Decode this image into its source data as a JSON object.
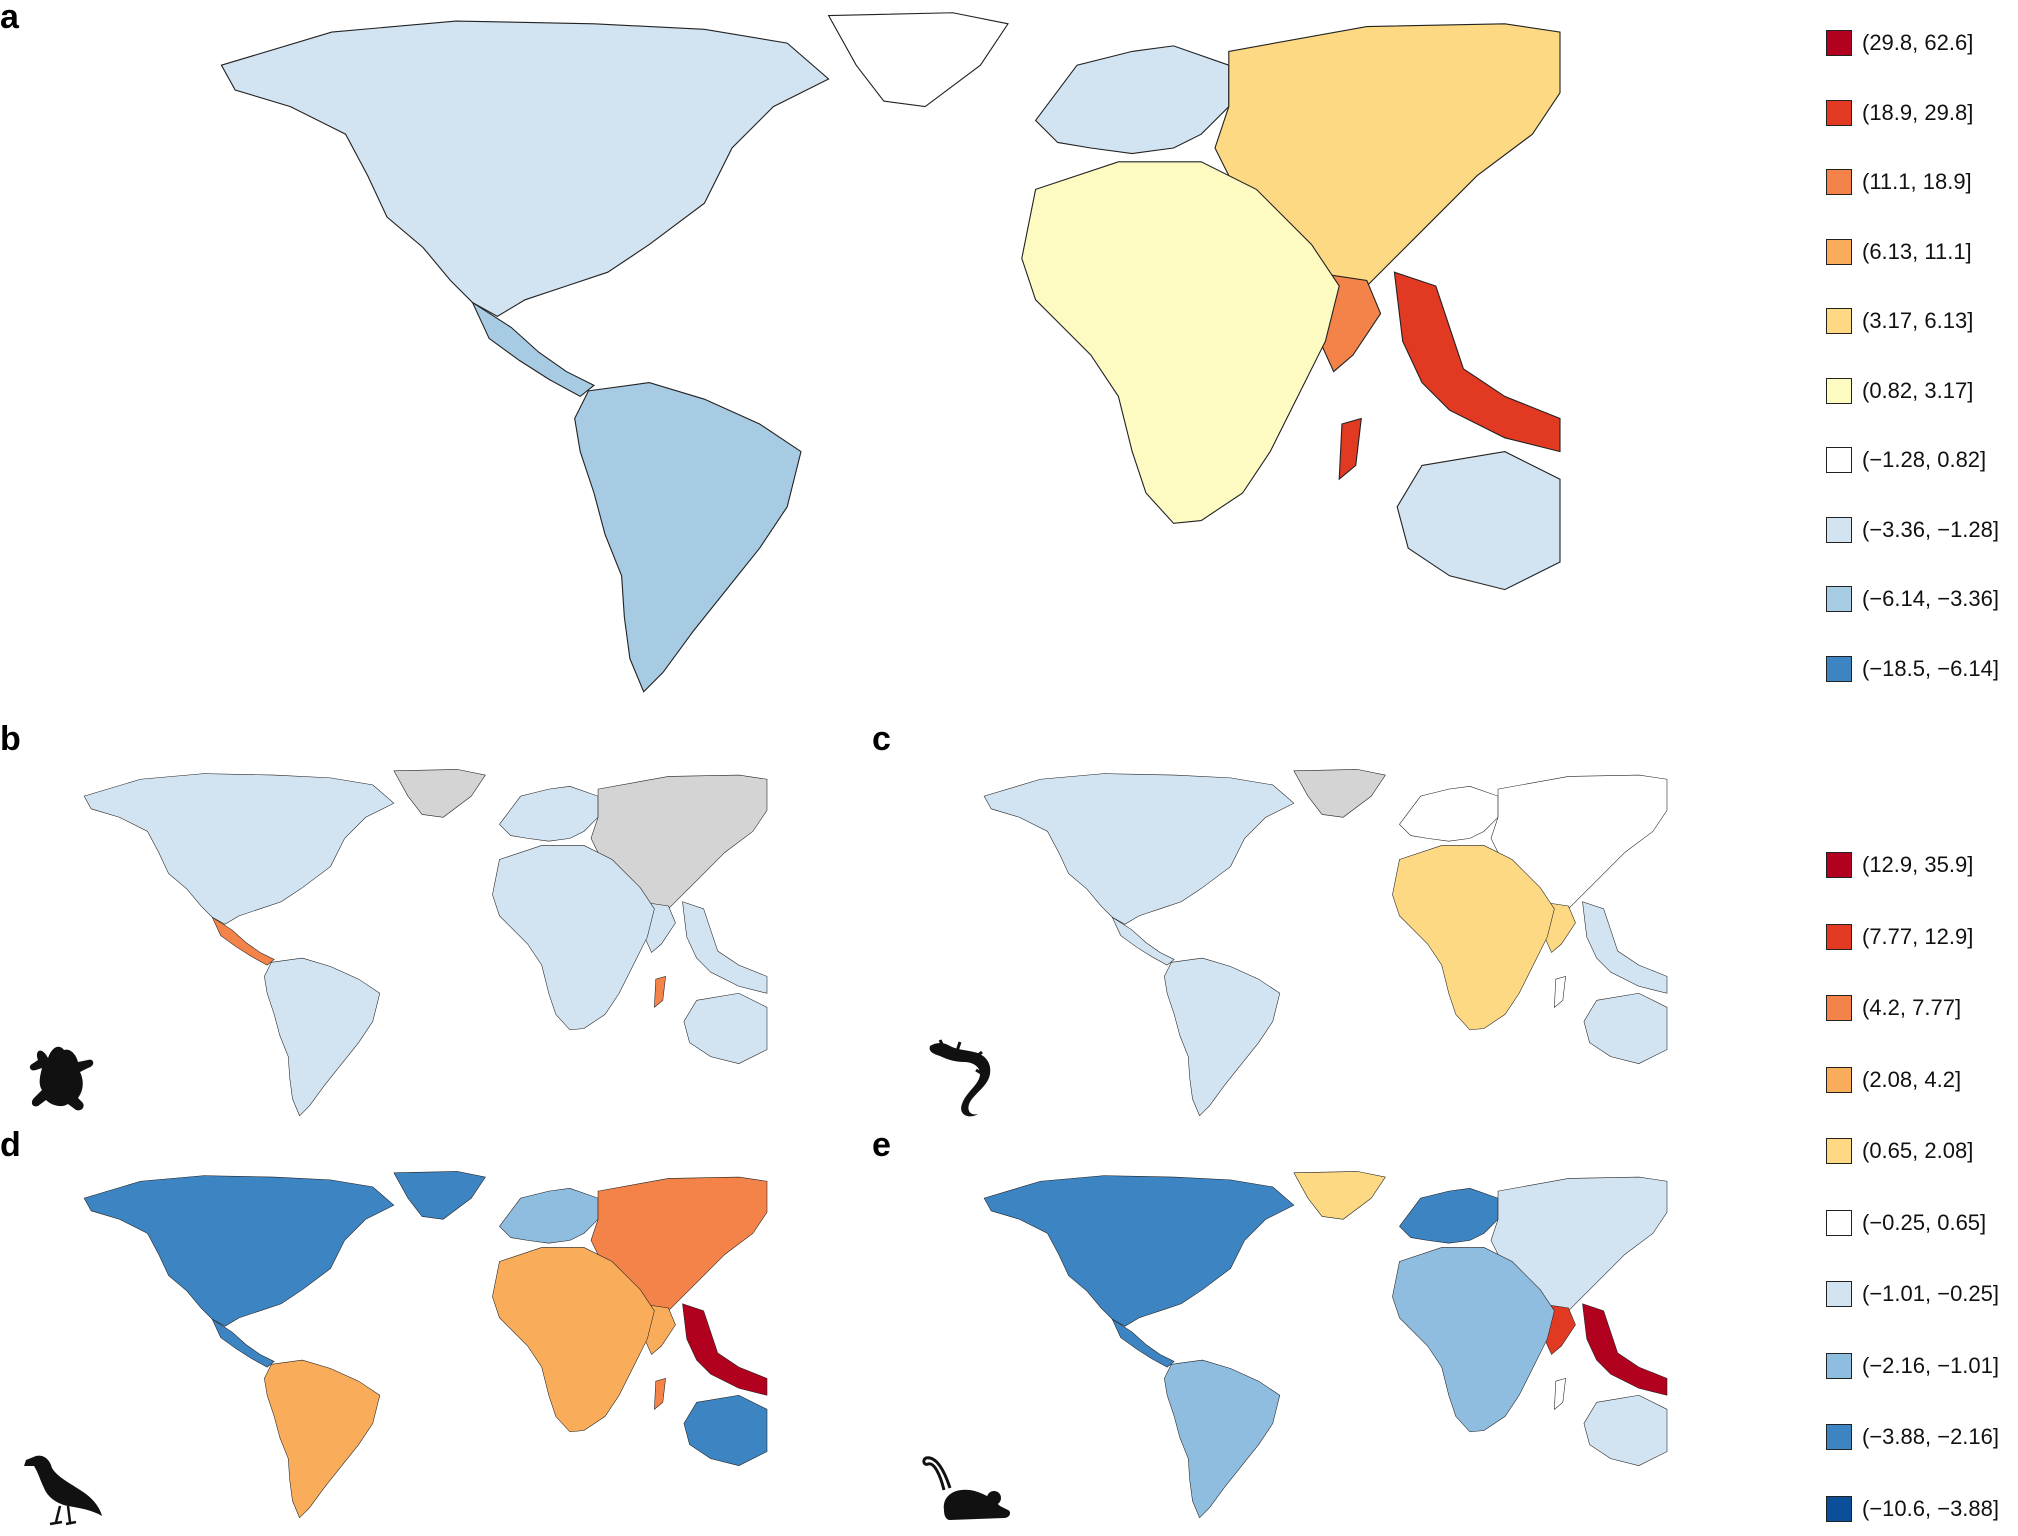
{
  "panels": [
    {
      "id": "a",
      "label": "a"
    },
    {
      "id": "b",
      "label": "b"
    },
    {
      "id": "c",
      "label": "c"
    },
    {
      "id": "d",
      "label": "d"
    },
    {
      "id": "e",
      "label": "e"
    }
  ],
  "silhouettes": {
    "b": "frog-icon",
    "c": "lizard-icon",
    "d": "bird-icon",
    "e": "mouse-icon"
  },
  "legend_top": {
    "items": [
      {
        "label": "(29.8, 62.6]",
        "color": "#b2001f"
      },
      {
        "label": "(18.9, 29.8]",
        "color": "#e23a22"
      },
      {
        "label": "(11.1, 18.9]",
        "color": "#f4834a"
      },
      {
        "label": "(6.13, 11.1]",
        "color": "#f9ad5a"
      },
      {
        "label": "(3.17, 6.13]",
        "color": "#fcd982"
      },
      {
        "label": "(0.82, 3.17]",
        "color": "#fdfbc2"
      },
      {
        "label": "(−1.28, 0.82]",
        "color": "#ffffff"
      },
      {
        "label": "(−3.36, −1.28]",
        "color": "#d2e3f1"
      },
      {
        "label": "(−6.14, −3.36]",
        "color": "#a8cbe4"
      },
      {
        "label": "(−18.5, −6.14]",
        "color": "#3d84c3"
      }
    ]
  },
  "legend_bottom": {
    "items": [
      {
        "label": "(12.9, 35.9]",
        "color": "#b2001f"
      },
      {
        "label": "(7.77, 12.9]",
        "color": "#e23a22"
      },
      {
        "label": "(4.2, 7.77]",
        "color": "#f4834a"
      },
      {
        "label": "(2.08, 4.2]",
        "color": "#f9ad5a"
      },
      {
        "label": "(0.65, 2.08]",
        "color": "#fcd982"
      },
      {
        "label": "(−0.25, 0.65]",
        "color": "#ffffff"
      },
      {
        "label": "(−1.01, −0.25]",
        "color": "#d2e3f1"
      },
      {
        "label": "(−2.16, −1.01]",
        "color": "#8fbde0"
      },
      {
        "label": "(−3.88, −2.16]",
        "color": "#3d84c3"
      },
      {
        "label": "(−10.6, −3.88]",
        "color": "#0b4f9a"
      }
    ]
  },
  "colors": {
    "no_data": "#d4d4d4",
    "border": "#222222"
  }
}
